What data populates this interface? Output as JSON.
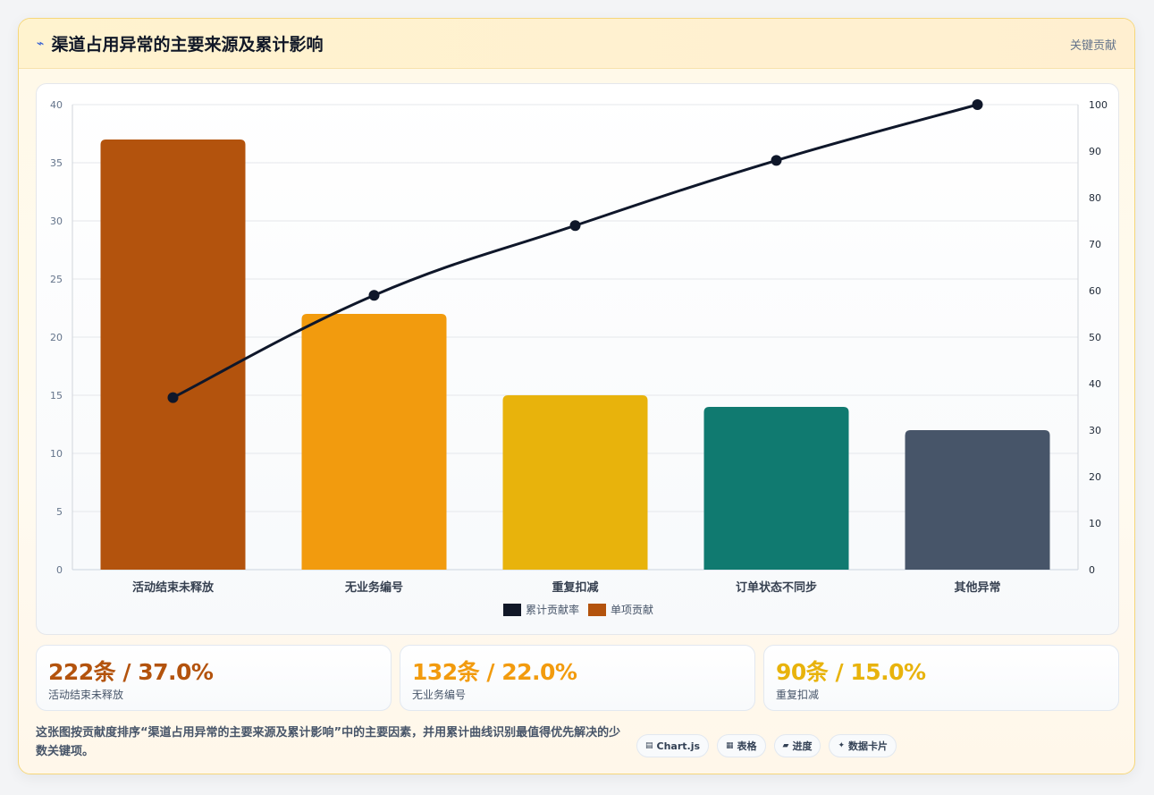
{
  "header": {
    "icon": "lightning-icon",
    "icon_glyph": "⌁",
    "title": "渠道占用异常的主要来源及累计影响",
    "tag": "关键贡献"
  },
  "chart_data": {
    "type": "bar",
    "categories": [
      "活动结束未释放",
      "无业务编号",
      "重复扣减",
      "订单状态不同步",
      "其他异常"
    ],
    "series": [
      {
        "name": "单项贡献",
        "type": "bar",
        "axis": "left",
        "values": [
          37,
          22,
          15,
          14,
          12
        ],
        "colors": [
          "#b3530d",
          "#f29b0e",
          "#e8b30c",
          "#107a70",
          "#475569"
        ]
      },
      {
        "name": "累计贡献率",
        "type": "line",
        "axis": "right",
        "values": [
          37,
          59,
          74,
          88,
          100
        ],
        "color": "#0f172a"
      }
    ],
    "y_left": {
      "min": 0,
      "max": 40,
      "ticks": [
        0,
        5,
        10,
        15,
        20,
        25,
        30,
        35,
        40
      ]
    },
    "y_right": {
      "min": 0,
      "max": 100,
      "ticks": [
        0,
        10,
        20,
        30,
        40,
        50,
        60,
        70,
        80,
        90,
        100
      ]
    },
    "legend": [
      {
        "label": "累计贡献率",
        "color": "#111827"
      },
      {
        "label": "单项贡献",
        "color": "#b3530d"
      }
    ],
    "legend_position": "bottom",
    "grid": true
  },
  "stats": [
    {
      "value": "222条 / 37.0%",
      "label": "活动结束未释放",
      "color": "#b3530d"
    },
    {
      "value": "132条 / 22.0%",
      "label": "无业务编号",
      "color": "#f29b0e"
    },
    {
      "value": "90条 / 15.0%",
      "label": "重复扣减",
      "color": "#e8b30c"
    }
  ],
  "footer": {
    "text": "这张图按贡献度排序“渠道占用异常的主要来源及累计影响”中的主要因素，并用累计曲线识别最值得优先解决的少数关键项。"
  },
  "chips": [
    {
      "icon": "chart-icon",
      "glyph": "▤",
      "label": "Chart.js"
    },
    {
      "icon": "table-icon",
      "glyph": "▦",
      "label": "表格"
    },
    {
      "icon": "progress-icon",
      "glyph": "▰",
      "label": "进度"
    },
    {
      "icon": "sparkle-icon",
      "glyph": "✦",
      "label": "数据卡片"
    }
  ]
}
